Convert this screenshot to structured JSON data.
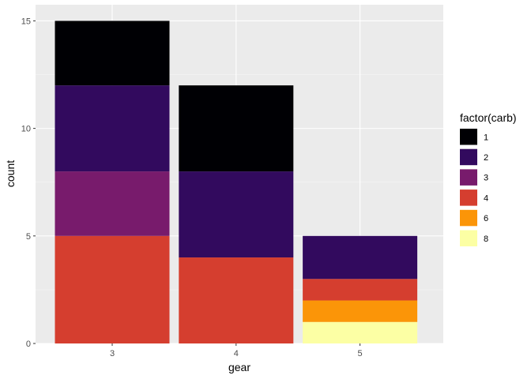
{
  "chart_data": {
    "type": "bar",
    "stacked": true,
    "title": "",
    "xlabel": "gear",
    "ylabel": "count",
    "categories": [
      "3",
      "4",
      "5"
    ],
    "ylim": [
      0,
      15.75
    ],
    "yticks": [
      0,
      5,
      10,
      15
    ],
    "grid": true,
    "legend": {
      "title": "factor(carb)",
      "placement": "right"
    },
    "series": [
      {
        "name": "1",
        "color": "#000004",
        "values": [
          3,
          4,
          0
        ]
      },
      {
        "name": "2",
        "color": "#320A5E",
        "values": [
          4,
          4,
          2
        ]
      },
      {
        "name": "3",
        "color": "#781B6C",
        "values": [
          3,
          0,
          0
        ]
      },
      {
        "name": "4",
        "color": "#D53E2F",
        "values": [
          5,
          4,
          1
        ]
      },
      {
        "name": "6",
        "color": "#FB9508",
        "values": [
          0,
          0,
          1
        ]
      },
      {
        "name": "8",
        "color": "#FCFFA4",
        "values": [
          0,
          0,
          1
        ]
      }
    ],
    "stack_order_bottom_to_top": [
      "8",
      "6",
      "4",
      "3",
      "2",
      "1"
    ]
  },
  "colors": {
    "panel_background": "#EBEBEB",
    "grid_major": "#FFFFFF",
    "grid_minor": "#F5F5F5"
  }
}
